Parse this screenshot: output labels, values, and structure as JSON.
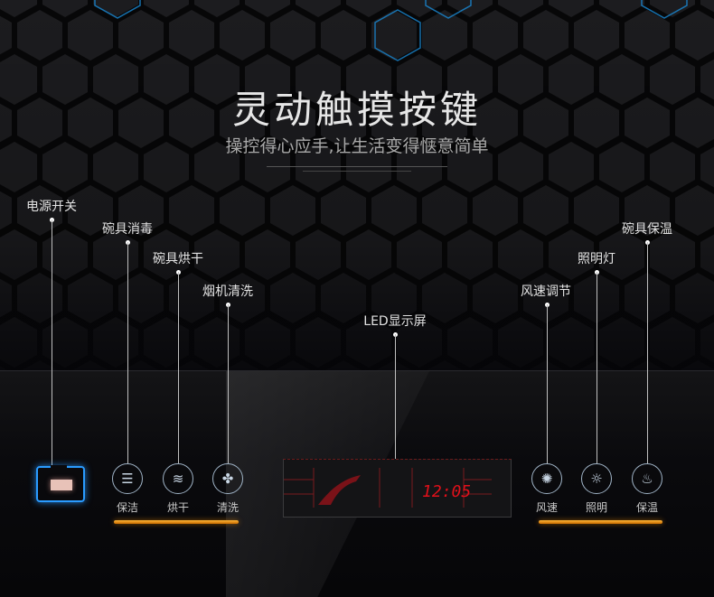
{
  "header": {
    "title": "灵动触摸按键",
    "subtitle": "操控得心应手,让生活变得惬意简单"
  },
  "callouts": {
    "power": "电源开关",
    "disinfect": "碗具消毒",
    "dry": "碗具烘干",
    "clean": "烟机清洗",
    "led": "LED显示屏",
    "fan": "风速调节",
    "light": "照明灯",
    "warm": "碗具保温"
  },
  "buttons": [
    {
      "label": "保洁",
      "icon": "dish-rack-icon"
    },
    {
      "label": "烘干",
      "icon": "bowl-steam-icon"
    },
    {
      "label": "清洗",
      "icon": "fan-spray-icon"
    },
    {
      "label": "风速",
      "icon": "fan-icon"
    },
    {
      "label": "照明",
      "icon": "light-bulb-icon"
    },
    {
      "label": "保温",
      "icon": "warm-bowl-icon"
    }
  ],
  "display": {
    "time": "12:05"
  },
  "colors": {
    "power_glow": "#2a9bff",
    "accent_bar": "#ff9f1a",
    "display_red": "#e0101a",
    "hex_glow": "#1a8cd8"
  }
}
